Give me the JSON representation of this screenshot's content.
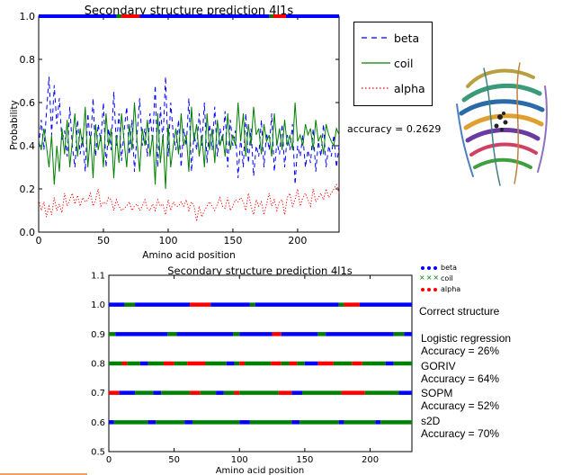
{
  "chart_data": [
    {
      "type": "line",
      "title": "Secondary structure prediction 4l1s",
      "xlabel": "Amino acid position",
      "ylabel": "Probability",
      "xlim": [
        0,
        232
      ],
      "ylim": [
        0.0,
        1.0
      ],
      "xticks": [
        "0",
        "50",
        "100",
        "150",
        "200"
      ],
      "yticks": [
        "0.0",
        "0.2",
        "0.4",
        "0.6",
        "0.8",
        "1.0"
      ],
      "grid": false,
      "legend_position": "outside-right",
      "annotation": "accuracy = 0.2629",
      "x_start": 0,
      "x_step": 2,
      "series": [
        {
          "name": "beta",
          "color": "#0000ff",
          "style": "dashed",
          "values": [
            0.4,
            0.52,
            0.38,
            0.55,
            0.72,
            0.45,
            0.68,
            0.5,
            0.62,
            0.42,
            0.47,
            0.35,
            0.58,
            0.4,
            0.3,
            0.52,
            0.36,
            0.44,
            0.28,
            0.55,
            0.4,
            0.62,
            0.35,
            0.5,
            0.42,
            0.6,
            0.3,
            0.48,
            0.38,
            0.65,
            0.4,
            0.55,
            0.33,
            0.47,
            0.58,
            0.36,
            0.52,
            0.28,
            0.45,
            0.62,
            0.4,
            0.48,
            0.35,
            0.55,
            0.42,
            0.68,
            0.3,
            0.58,
            0.42,
            0.72,
            0.35,
            0.6,
            0.45,
            0.38,
            0.52,
            0.3,
            0.48,
            0.4,
            0.62,
            0.28,
            0.46,
            0.38,
            0.55,
            0.4,
            0.6,
            0.32,
            0.5,
            0.38,
            0.58,
            0.35,
            0.48,
            0.42,
            0.56,
            0.3,
            0.52,
            0.4,
            0.47,
            0.25,
            0.44,
            0.3,
            0.55,
            0.32,
            0.48,
            0.26,
            0.4,
            0.35,
            0.52,
            0.3,
            0.46,
            0.38,
            0.55,
            0.28,
            0.42,
            0.36,
            0.5,
            0.3,
            0.45,
            0.38,
            0.5,
            0.22,
            0.4,
            0.35,
            0.45,
            0.3,
            0.38,
            0.32,
            0.48,
            0.28,
            0.42,
            0.35,
            0.5,
            0.3,
            0.4,
            0.35,
            0.45,
            0.3,
            0.4
          ]
        },
        {
          "name": "coil",
          "color": "#008000",
          "style": "solid",
          "values": [
            0.42,
            0.38,
            0.48,
            0.4,
            0.3,
            0.45,
            0.22,
            0.4,
            0.28,
            0.48,
            0.36,
            0.52,
            0.3,
            0.42,
            0.55,
            0.35,
            0.48,
            0.4,
            0.58,
            0.3,
            0.45,
            0.25,
            0.5,
            0.38,
            0.45,
            0.3,
            0.55,
            0.4,
            0.48,
            0.25,
            0.45,
            0.32,
            0.55,
            0.42,
            0.3,
            0.5,
            0.38,
            0.6,
            0.42,
            0.28,
            0.48,
            0.4,
            0.52,
            0.35,
            0.45,
            0.22,
            0.55,
            0.32,
            0.45,
            0.2,
            0.5,
            0.3,
            0.4,
            0.48,
            0.36,
            0.55,
            0.4,
            0.45,
            0.28,
            0.58,
            0.42,
            0.5,
            0.35,
            0.45,
            0.3,
            0.55,
            0.38,
            0.48,
            0.32,
            0.52,
            0.4,
            0.45,
            0.35,
            0.55,
            0.38,
            0.45,
            0.4,
            0.6,
            0.42,
            0.55,
            0.35,
            0.5,
            0.4,
            0.58,
            0.45,
            0.48,
            0.36,
            0.5,
            0.42,
            0.45,
            0.35,
            0.55,
            0.4,
            0.48,
            0.38,
            0.52,
            0.4,
            0.45,
            0.38,
            0.6,
            0.42,
            0.45,
            0.4,
            0.5,
            0.45,
            0.48,
            0.38,
            0.52,
            0.42,
            0.45,
            0.36,
            0.5,
            0.45,
            0.42,
            0.4,
            0.48,
            0.45
          ]
        },
        {
          "name": "alpha",
          "color": "#ff0000",
          "style": "dotted",
          "values": [
            0.15,
            0.1,
            0.14,
            0.07,
            0.12,
            0.08,
            0.16,
            0.1,
            0.13,
            0.09,
            0.18,
            0.12,
            0.15,
            0.18,
            0.13,
            0.17,
            0.12,
            0.16,
            0.14,
            0.15,
            0.18,
            0.12,
            0.15,
            0.2,
            0.12,
            0.14,
            0.13,
            0.16,
            0.15,
            0.1,
            0.15,
            0.12,
            0.1,
            0.11,
            0.12,
            0.14,
            0.1,
            0.12,
            0.13,
            0.1,
            0.12,
            0.15,
            0.11,
            0.1,
            0.13,
            0.1,
            0.15,
            0.12,
            0.13,
            0.08,
            0.15,
            0.1,
            0.14,
            0.12,
            0.12,
            0.14,
            0.12,
            0.15,
            0.1,
            0.14,
            0.12,
            0.05,
            0.12,
            0.07,
            0.1,
            0.12,
            0.14,
            0.12,
            0.1,
            0.13,
            0.16,
            0.12,
            0.11,
            0.16,
            0.1,
            0.12,
            0.15,
            0.14,
            0.16,
            0.14,
            0.1,
            0.18,
            0.12,
            0.08,
            0.15,
            0.12,
            0.14,
            0.08,
            0.13,
            0.18,
            0.12,
            0.15,
            0.1,
            0.14,
            0.15,
            0.08,
            0.16,
            0.18,
            0.12,
            0.15,
            0.2,
            0.12,
            0.16,
            0.18,
            0.15,
            0.12,
            0.2,
            0.14,
            0.16,
            0.18,
            0.15,
            0.2,
            0.16,
            0.18,
            0.2,
            0.22,
            0.18
          ]
        }
      ],
      "top_strip": {
        "y": 1.0,
        "segments": [
          {
            "from": 0,
            "to": 60,
            "label": "beta"
          },
          {
            "from": 60,
            "to": 64,
            "label": "coil"
          },
          {
            "from": 64,
            "to": 78,
            "label": "alpha"
          },
          {
            "from": 78,
            "to": 178,
            "label": "beta"
          },
          {
            "from": 178,
            "to": 181,
            "label": "coil"
          },
          {
            "from": 181,
            "to": 191,
            "label": "alpha"
          },
          {
            "from": 191,
            "to": 232,
            "label": "beta"
          }
        ]
      }
    },
    {
      "type": "scatter",
      "title": "Secondary structure prediction 4l1s",
      "xlabel": "Amino acid position",
      "ylabel": "",
      "xlim": [
        0,
        232
      ],
      "ylim": [
        0.5,
        1.1
      ],
      "xticks": [
        "0",
        "50",
        "100",
        "150",
        "200"
      ],
      "yticks": [
        "0.5",
        "0.6",
        "0.7",
        "0.8",
        "0.9",
        "1.0",
        "1.1"
      ],
      "grid": false,
      "legend_position": "outside-top-right",
      "legend": [
        {
          "name": "beta",
          "color": "#0000ff",
          "marker": "dot"
        },
        {
          "name": "coil",
          "color": "#008000",
          "marker": "x"
        },
        {
          "name": "alpha",
          "color": "#ff0000",
          "marker": "dot"
        }
      ],
      "rows": [
        {
          "y": 1.0,
          "segments": [
            {
              "from": 0,
              "to": 12,
              "label": "beta"
            },
            {
              "from": 12,
              "to": 20,
              "label": "coil"
            },
            {
              "from": 20,
              "to": 62,
              "label": "beta"
            },
            {
              "from": 62,
              "to": 78,
              "label": "alpha"
            },
            {
              "from": 78,
              "to": 108,
              "label": "beta"
            },
            {
              "from": 108,
              "to": 112,
              "label": "coil"
            },
            {
              "from": 112,
              "to": 176,
              "label": "beta"
            },
            {
              "from": 176,
              "to": 180,
              "label": "coil"
            },
            {
              "from": 180,
              "to": 192,
              "label": "alpha"
            },
            {
              "from": 192,
              "to": 232,
              "label": "beta"
            }
          ]
        },
        {
          "y": 0.9,
          "segments": [
            {
              "from": 0,
              "to": 5,
              "label": "coil"
            },
            {
              "from": 5,
              "to": 45,
              "label": "beta"
            },
            {
              "from": 45,
              "to": 52,
              "label": "coil"
            },
            {
              "from": 52,
              "to": 95,
              "label": "beta"
            },
            {
              "from": 95,
              "to": 100,
              "label": "coil"
            },
            {
              "from": 100,
              "to": 125,
              "label": "beta"
            },
            {
              "from": 125,
              "to": 132,
              "label": "alpha"
            },
            {
              "from": 132,
              "to": 160,
              "label": "beta"
            },
            {
              "from": 160,
              "to": 166,
              "label": "coil"
            },
            {
              "from": 166,
              "to": 218,
              "label": "beta"
            },
            {
              "from": 218,
              "to": 226,
              "label": "coil"
            },
            {
              "from": 226,
              "to": 232,
              "label": "beta"
            }
          ]
        },
        {
          "y": 0.8,
          "segments": [
            {
              "from": 0,
              "to": 10,
              "label": "coil"
            },
            {
              "from": 10,
              "to": 14,
              "label": "alpha"
            },
            {
              "from": 14,
              "to": 24,
              "label": "coil"
            },
            {
              "from": 24,
              "to": 30,
              "label": "beta"
            },
            {
              "from": 30,
              "to": 42,
              "label": "coil"
            },
            {
              "from": 42,
              "to": 50,
              "label": "alpha"
            },
            {
              "from": 50,
              "to": 60,
              "label": "coil"
            },
            {
              "from": 60,
              "to": 74,
              "label": "alpha"
            },
            {
              "from": 74,
              "to": 90,
              "label": "coil"
            },
            {
              "from": 90,
              "to": 96,
              "label": "beta"
            },
            {
              "from": 96,
              "to": 100,
              "label": "coil"
            },
            {
              "from": 100,
              "to": 104,
              "label": "alpha"
            },
            {
              "from": 104,
              "to": 124,
              "label": "coil"
            },
            {
              "from": 124,
              "to": 132,
              "label": "alpha"
            },
            {
              "from": 132,
              "to": 138,
              "label": "coil"
            },
            {
              "from": 138,
              "to": 144,
              "label": "alpha"
            },
            {
              "from": 144,
              "to": 150,
              "label": "coil"
            },
            {
              "from": 150,
              "to": 160,
              "label": "beta"
            },
            {
              "from": 160,
              "to": 172,
              "label": "alpha"
            },
            {
              "from": 172,
              "to": 186,
              "label": "coil"
            },
            {
              "from": 186,
              "to": 194,
              "label": "alpha"
            },
            {
              "from": 194,
              "to": 212,
              "label": "coil"
            },
            {
              "from": 212,
              "to": 218,
              "label": "beta"
            },
            {
              "from": 218,
              "to": 232,
              "label": "coil"
            }
          ]
        },
        {
          "y": 0.7,
          "segments": [
            {
              "from": 0,
              "to": 8,
              "label": "alpha"
            },
            {
              "from": 8,
              "to": 20,
              "label": "beta"
            },
            {
              "from": 20,
              "to": 34,
              "label": "coil"
            },
            {
              "from": 34,
              "to": 40,
              "label": "beta"
            },
            {
              "from": 40,
              "to": 62,
              "label": "coil"
            },
            {
              "from": 62,
              "to": 70,
              "label": "alpha"
            },
            {
              "from": 70,
              "to": 82,
              "label": "coil"
            },
            {
              "from": 82,
              "to": 88,
              "label": "beta"
            },
            {
              "from": 88,
              "to": 96,
              "label": "coil"
            },
            {
              "from": 96,
              "to": 100,
              "label": "alpha"
            },
            {
              "from": 100,
              "to": 130,
              "label": "coil"
            },
            {
              "from": 130,
              "to": 140,
              "label": "alpha"
            },
            {
              "from": 140,
              "to": 148,
              "label": "beta"
            },
            {
              "from": 148,
              "to": 178,
              "label": "coil"
            },
            {
              "from": 178,
              "to": 196,
              "label": "alpha"
            },
            {
              "from": 196,
              "to": 222,
              "label": "coil"
            },
            {
              "from": 222,
              "to": 232,
              "label": "beta"
            }
          ]
        },
        {
          "y": 0.6,
          "segments": [
            {
              "from": 0,
              "to": 4,
              "label": "beta"
            },
            {
              "from": 4,
              "to": 30,
              "label": "coil"
            },
            {
              "from": 30,
              "to": 36,
              "label": "beta"
            },
            {
              "from": 36,
              "to": 58,
              "label": "coil"
            },
            {
              "from": 58,
              "to": 64,
              "label": "beta"
            },
            {
              "from": 64,
              "to": 100,
              "label": "coil"
            },
            {
              "from": 100,
              "to": 108,
              "label": "beta"
            },
            {
              "from": 108,
              "to": 140,
              "label": "coil"
            },
            {
              "from": 140,
              "to": 146,
              "label": "beta"
            },
            {
              "from": 146,
              "to": 176,
              "label": "coil"
            },
            {
              "from": 176,
              "to": 180,
              "label": "beta"
            },
            {
              "from": 180,
              "to": 204,
              "label": "coil"
            },
            {
              "from": 204,
              "to": 208,
              "label": "beta"
            },
            {
              "from": 208,
              "to": 232,
              "label": "coil"
            }
          ]
        }
      ]
    }
  ],
  "colors": {
    "beta": "#0000ff",
    "coil": "#008000",
    "alpha": "#ff0000",
    "footer_accent": "#f0a060"
  },
  "side_labels": {
    "correct": "Correct structure",
    "logreg_name": "Logistic regression",
    "logreg_acc": "Accuracy = 26%",
    "goriv_name": "GORIV",
    "goriv_acc": "Accuracy = 64%",
    "sopm_name": "SOPM",
    "sopm_acc": "Accuracy = 52%",
    "s2d_name": "s2D",
    "s2d_acc": "Accuracy = 70%"
  },
  "images": {
    "protein": "protein-structure-ribbon"
  }
}
